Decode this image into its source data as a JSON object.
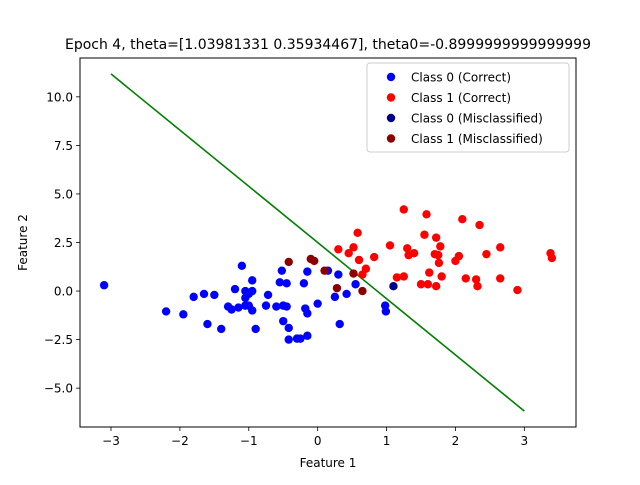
{
  "chart_data": {
    "type": "scatter",
    "title": "Epoch 4, theta=[1.03981331 0.35934467], theta0=-0.8999999999999999",
    "xlabel": "Feature 1",
    "ylabel": "Feature 2",
    "xlim": [
      -3.45,
      3.75
    ],
    "ylim": [
      -7.0,
      12.0
    ],
    "xticks": [
      -3,
      -2,
      -1,
      0,
      1,
      2,
      3
    ],
    "yticks": [
      -5.0,
      -2.5,
      0.0,
      2.5,
      5.0,
      7.5,
      10.0
    ],
    "xtick_labels": [
      "−3",
      "−2",
      "−1",
      "0",
      "1",
      "2",
      "3"
    ],
    "ytick_labels": [
      "−5.0",
      "−2.5",
      "0.0",
      "2.5",
      "5.0",
      "7.5",
      "10.0"
    ],
    "grid": false,
    "legend_position": "top-right",
    "colors": {
      "class0_correct": "#0000ff",
      "class1_correct": "#ff0000",
      "class0_misclassified": "#00008b",
      "class1_misclassified": "#8b0000",
      "boundary": "#008000"
    },
    "series": [
      {
        "name": "Class 0 (Correct)",
        "color": "#0000ff",
        "points": [
          [
            -3.1,
            0.3
          ],
          [
            -2.2,
            -1.05
          ],
          [
            -1.95,
            -1.2
          ],
          [
            -1.8,
            -0.3
          ],
          [
            -1.65,
            -0.15
          ],
          [
            -1.6,
            -1.7
          ],
          [
            -1.5,
            -0.2
          ],
          [
            -1.4,
            -1.95
          ],
          [
            -1.3,
            -0.8
          ],
          [
            -1.25,
            -0.95
          ],
          [
            -1.2,
            0.1
          ],
          [
            -1.15,
            -0.85
          ],
          [
            -1.1,
            1.3
          ],
          [
            -1.05,
            -0.35
          ],
          [
            -1.05,
            0.0
          ],
          [
            -1.05,
            -0.75
          ],
          [
            -1.0,
            -0.15
          ],
          [
            -1.0,
            -0.75
          ],
          [
            -0.95,
            0.55
          ],
          [
            -0.95,
            0.0
          ],
          [
            -0.95,
            -1.0
          ],
          [
            -0.9,
            -1.95
          ],
          [
            -0.75,
            -0.75
          ],
          [
            -0.72,
            -0.2
          ],
          [
            -0.6,
            -0.8
          ],
          [
            -0.55,
            0.45
          ],
          [
            -0.52,
            1.05
          ],
          [
            -0.5,
            -1.55
          ],
          [
            -0.5,
            -0.75
          ],
          [
            -0.45,
            -0.8
          ],
          [
            -0.45,
            0.4
          ],
          [
            -0.42,
            -1.9
          ],
          [
            -0.42,
            -2.5
          ],
          [
            -0.3,
            -2.45
          ],
          [
            -0.25,
            -2.45
          ],
          [
            -0.2,
            0.4
          ],
          [
            -0.18,
            -0.9
          ],
          [
            -0.15,
            -2.3
          ],
          [
            -0.15,
            1.0
          ],
          [
            -0.15,
            -1.15
          ],
          [
            0.0,
            -0.65
          ],
          [
            0.15,
            1.05
          ],
          [
            0.25,
            -0.3
          ],
          [
            0.3,
            0.85
          ],
          [
            0.32,
            -1.7
          ],
          [
            0.42,
            -0.15
          ],
          [
            0.55,
            0.35
          ],
          [
            0.98,
            -0.75
          ],
          [
            0.99,
            -1.05
          ]
        ]
      },
      {
        "name": "Class 1 (Correct)",
        "color": "#ff0000",
        "points": [
          [
            0.3,
            2.15
          ],
          [
            0.45,
            1.95
          ],
          [
            0.52,
            2.25
          ],
          [
            0.58,
            3.0
          ],
          [
            0.6,
            1.6
          ],
          [
            0.65,
            0.85
          ],
          [
            0.7,
            1.15
          ],
          [
            0.82,
            1.75
          ],
          [
            1.05,
            2.35
          ],
          [
            1.15,
            0.7
          ],
          [
            1.25,
            4.2
          ],
          [
            1.25,
            0.75
          ],
          [
            1.3,
            2.2
          ],
          [
            1.32,
            1.85
          ],
          [
            1.4,
            1.95
          ],
          [
            1.5,
            0.35
          ],
          [
            1.55,
            2.9
          ],
          [
            1.58,
            3.95
          ],
          [
            1.6,
            0.35
          ],
          [
            1.62,
            0.95
          ],
          [
            1.7,
            1.9
          ],
          [
            1.72,
            2.75
          ],
          [
            1.72,
            0.25
          ],
          [
            1.75,
            1.85
          ],
          [
            1.76,
            1.45
          ],
          [
            1.78,
            2.3
          ],
          [
            1.8,
            0.75
          ],
          [
            2.0,
            1.55
          ],
          [
            2.05,
            1.8
          ],
          [
            2.1,
            3.7
          ],
          [
            2.15,
            0.65
          ],
          [
            2.3,
            0.6
          ],
          [
            2.32,
            0.25
          ],
          [
            2.35,
            3.4
          ],
          [
            2.45,
            1.9
          ],
          [
            2.65,
            2.25
          ],
          [
            2.65,
            0.65
          ],
          [
            2.9,
            0.05
          ],
          [
            3.38,
            1.95
          ],
          [
            3.4,
            1.7
          ]
        ]
      },
      {
        "name": "Class 0 (Misclassified)",
        "color": "#00008b",
        "points": [
          [
            1.1,
            0.25
          ]
        ]
      },
      {
        "name": "Class 1 (Misclassified)",
        "color": "#8b0000",
        "points": [
          [
            -0.42,
            1.5
          ],
          [
            -0.1,
            1.65
          ],
          [
            -0.05,
            1.55
          ],
          [
            0.1,
            1.05
          ],
          [
            0.28,
            0.15
          ],
          [
            0.52,
            0.9
          ],
          [
            0.65,
            0.0
          ]
        ]
      }
    ],
    "boundary_line": {
      "color": "#008000",
      "points": [
        [
          -3.0,
          11.18
        ],
        [
          3.0,
          -6.18
        ]
      ]
    }
  }
}
